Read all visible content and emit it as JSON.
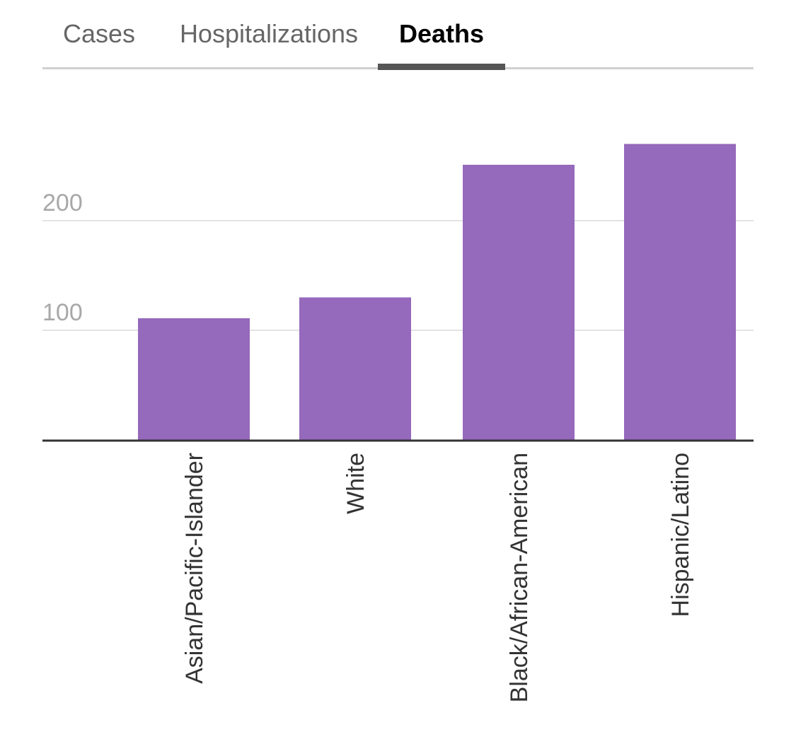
{
  "tabs": [
    {
      "label": "Cases",
      "active": false
    },
    {
      "label": "Hospitalizations",
      "active": false
    },
    {
      "label": "Deaths",
      "active": true
    }
  ],
  "colors": {
    "bar": "#9569bc",
    "gridline": "#e3e3e3",
    "baseline": "#333333",
    "tick_label": "#a8a8a8",
    "category_label": "#333333",
    "tab_underline": "#555555"
  },
  "chart_data": {
    "type": "bar",
    "categories": [
      "Asian/Pacific-Islander",
      "White",
      "Black/African-American",
      "Hispanic/Latino"
    ],
    "values": [
      111,
      130,
      251,
      270
    ],
    "yticks": [
      100,
      200
    ],
    "ylim": [
      0,
      300
    ],
    "grid": true,
    "title": "",
    "xlabel": "",
    "ylabel": ""
  }
}
